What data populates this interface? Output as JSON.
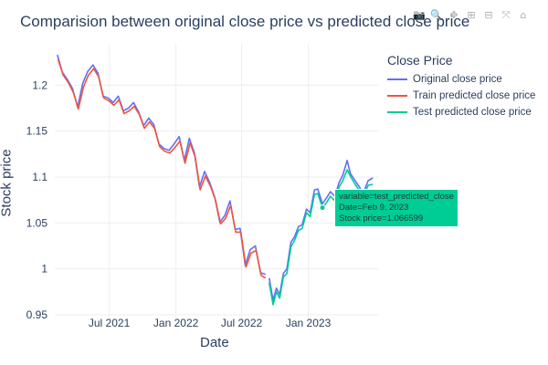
{
  "chart_data": {
    "type": "line",
    "title": "Comparision between original close price vs predicted close price",
    "xlabel": "Date",
    "ylabel": "Stock price",
    "legend_title": "Close Price",
    "x_range": [
      "2021-02-01",
      "2023-07-15"
    ],
    "ylim": [
      0.945,
      1.245
    ],
    "x_ticks": [
      {
        "date": "2021-07-01",
        "label": "Jul 2021"
      },
      {
        "date": "2022-01-01",
        "label": "Jan 2022"
      },
      {
        "date": "2022-07-01",
        "label": "Jul 2022"
      },
      {
        "date": "2023-01-01",
        "label": "Jan 2023"
      }
    ],
    "y_ticks": [
      {
        "value": 0.95,
        "label": "0.95"
      },
      {
        "value": 1.0,
        "label": "1"
      },
      {
        "value": 1.05,
        "label": "1.05"
      },
      {
        "value": 1.1,
        "label": "1.1"
      },
      {
        "value": 1.15,
        "label": "1.15"
      },
      {
        "value": 1.2,
        "label": "1.2"
      }
    ],
    "series": [
      {
        "name": "Original close price",
        "color": "#636efa",
        "points": [
          [
            "2021-02-08",
            1.233
          ],
          [
            "2021-02-22",
            1.214
          ],
          [
            "2021-03-08",
            1.206
          ],
          [
            "2021-03-22",
            1.196
          ],
          [
            "2021-04-05",
            1.176
          ],
          [
            "2021-04-19",
            1.202
          ],
          [
            "2021-05-03",
            1.215
          ],
          [
            "2021-05-17",
            1.222
          ],
          [
            "2021-05-31",
            1.213
          ],
          [
            "2021-06-14",
            1.188
          ],
          [
            "2021-06-28",
            1.186
          ],
          [
            "2021-07-12",
            1.181
          ],
          [
            "2021-07-26",
            1.188
          ],
          [
            "2021-08-09",
            1.172
          ],
          [
            "2021-08-23",
            1.175
          ],
          [
            "2021-09-06",
            1.181
          ],
          [
            "2021-09-20",
            1.171
          ],
          [
            "2021-10-04",
            1.156
          ],
          [
            "2021-10-18",
            1.164
          ],
          [
            "2021-11-01",
            1.157
          ],
          [
            "2021-11-15",
            1.136
          ],
          [
            "2021-11-29",
            1.131
          ],
          [
            "2021-12-13",
            1.129
          ],
          [
            "2021-12-27",
            1.136
          ],
          [
            "2022-01-10",
            1.144
          ],
          [
            "2022-01-24",
            1.118
          ],
          [
            "2022-02-07",
            1.142
          ],
          [
            "2022-02-21",
            1.126
          ],
          [
            "2022-03-07",
            1.089
          ],
          [
            "2022-03-21",
            1.106
          ],
          [
            "2022-04-04",
            1.094
          ],
          [
            "2022-04-18",
            1.078
          ],
          [
            "2022-05-02",
            1.051
          ],
          [
            "2022-05-16",
            1.058
          ],
          [
            "2022-05-30",
            1.074
          ],
          [
            "2022-06-13",
            1.043
          ],
          [
            "2022-06-27",
            1.044
          ],
          [
            "2022-07-11",
            1.004
          ],
          [
            "2022-07-25",
            1.021
          ],
          [
            "2022-08-08",
            1.025
          ],
          [
            "2022-08-22",
            0.996
          ],
          [
            "2022-09-05",
            0.994
          ]
        ]
      },
      {
        "name": "Train predicted close price",
        "color": "#ef553b",
        "points": [
          [
            "2021-02-10",
            1.228
          ],
          [
            "2021-02-24",
            1.211
          ],
          [
            "2021-03-10",
            1.203
          ],
          [
            "2021-03-24",
            1.192
          ],
          [
            "2021-04-07",
            1.174
          ],
          [
            "2021-04-21",
            1.198
          ],
          [
            "2021-05-05",
            1.211
          ],
          [
            "2021-05-19",
            1.218
          ],
          [
            "2021-06-02",
            1.209
          ],
          [
            "2021-06-16",
            1.186
          ],
          [
            "2021-06-30",
            1.183
          ],
          [
            "2021-07-14",
            1.178
          ],
          [
            "2021-07-28",
            1.184
          ],
          [
            "2021-08-11",
            1.169
          ],
          [
            "2021-08-25",
            1.172
          ],
          [
            "2021-09-08",
            1.177
          ],
          [
            "2021-09-22",
            1.168
          ],
          [
            "2021-10-06",
            1.153
          ],
          [
            "2021-10-20",
            1.16
          ],
          [
            "2021-11-03",
            1.153
          ],
          [
            "2021-11-17",
            1.133
          ],
          [
            "2021-12-01",
            1.128
          ],
          [
            "2021-12-15",
            1.126
          ],
          [
            "2021-12-29",
            1.132
          ],
          [
            "2022-01-12",
            1.139
          ],
          [
            "2022-01-26",
            1.115
          ],
          [
            "2022-02-09",
            1.137
          ],
          [
            "2022-02-23",
            1.122
          ],
          [
            "2022-03-09",
            1.086
          ],
          [
            "2022-03-23",
            1.101
          ],
          [
            "2022-04-06",
            1.09
          ],
          [
            "2022-04-20",
            1.075
          ],
          [
            "2022-05-04",
            1.049
          ],
          [
            "2022-05-18",
            1.055
          ],
          [
            "2022-06-01",
            1.069
          ],
          [
            "2022-06-15",
            1.04
          ],
          [
            "2022-06-29",
            1.04
          ],
          [
            "2022-07-13",
            1.002
          ],
          [
            "2022-07-27",
            1.017
          ],
          [
            "2022-08-10",
            1.02
          ],
          [
            "2022-08-24",
            0.993
          ],
          [
            "2022-09-05",
            0.99
          ]
        ]
      },
      {
        "name": "Test predicted close price",
        "color": "#00cc96",
        "points": [
          [
            "2022-09-15",
            0.985
          ],
          [
            "2022-09-26",
            0.961
          ],
          [
            "2022-10-05",
            0.975
          ],
          [
            "2022-10-14",
            0.968
          ],
          [
            "2022-10-24",
            0.991
          ],
          [
            "2022-11-03",
            0.995
          ],
          [
            "2022-11-14",
            1.024
          ],
          [
            "2022-11-24",
            1.031
          ],
          [
            "2022-12-05",
            1.042
          ],
          [
            "2022-12-15",
            1.044
          ],
          [
            "2022-12-27",
            1.061
          ],
          [
            "2023-01-06",
            1.057
          ],
          [
            "2023-01-18",
            1.081
          ],
          [
            "2023-01-27",
            1.082
          ],
          [
            "2023-02-09",
            1.066599
          ],
          [
            "2023-02-20",
            1.072
          ],
          [
            "2023-03-03",
            1.079
          ],
          [
            "2023-03-15",
            1.074
          ],
          [
            "2023-03-27",
            1.089
          ],
          [
            "2023-04-06",
            1.096
          ],
          [
            "2023-04-18",
            1.108
          ],
          [
            "2023-04-27",
            1.101
          ],
          [
            "2023-05-10",
            1.092
          ],
          [
            "2023-05-22",
            1.085
          ],
          [
            "2023-06-01",
            1.078
          ],
          [
            "2023-06-15",
            1.091
          ],
          [
            "2023-06-28",
            1.092
          ]
        ]
      }
    ],
    "overlay_segment": {
      "name": "Original close price",
      "color": "#636efa",
      "points": [
        [
          "2022-09-15",
          0.99
        ],
        [
          "2022-09-26",
          0.966
        ],
        [
          "2022-10-05",
          0.979
        ],
        [
          "2022-10-14",
          0.972
        ],
        [
          "2022-10-24",
          0.995
        ],
        [
          "2022-11-03",
          1.0
        ],
        [
          "2022-11-14",
          1.029
        ],
        [
          "2022-11-24",
          1.035
        ],
        [
          "2022-12-05",
          1.046
        ],
        [
          "2022-12-15",
          1.048
        ],
        [
          "2022-12-27",
          1.065
        ],
        [
          "2023-01-06",
          1.061
        ],
        [
          "2023-01-18",
          1.086
        ],
        [
          "2023-01-27",
          1.087
        ],
        [
          "2023-02-09",
          1.071
        ],
        [
          "2023-02-20",
          1.077
        ],
        [
          "2023-03-03",
          1.084
        ],
        [
          "2023-03-15",
          1.079
        ],
        [
          "2023-03-27",
          1.094
        ],
        [
          "2023-04-06",
          1.102
        ],
        [
          "2023-04-18",
          1.118
        ],
        [
          "2023-04-27",
          1.104
        ],
        [
          "2023-05-10",
          1.096
        ],
        [
          "2023-05-22",
          1.089
        ],
        [
          "2023-06-01",
          1.082
        ],
        [
          "2023-06-15",
          1.096
        ],
        [
          "2023-06-28",
          1.099
        ]
      ]
    },
    "tooltip": {
      "variable": "variable=test_predicted_close",
      "date": "Date=Feb 9, 2023",
      "value": "Stock price=1.066599",
      "point": [
        "2023-02-09",
        1.066599
      ]
    }
  },
  "modebar": {
    "icons": [
      "camera-icon",
      "zoom-icon",
      "pan-icon",
      "zoom-in-icon",
      "zoom-out-icon",
      "autoscale-icon",
      "reset-icon"
    ],
    "glyphs": [
      "📷",
      "🔍",
      "✥",
      "⊞",
      "⊟",
      "⤧",
      "⌂"
    ]
  }
}
